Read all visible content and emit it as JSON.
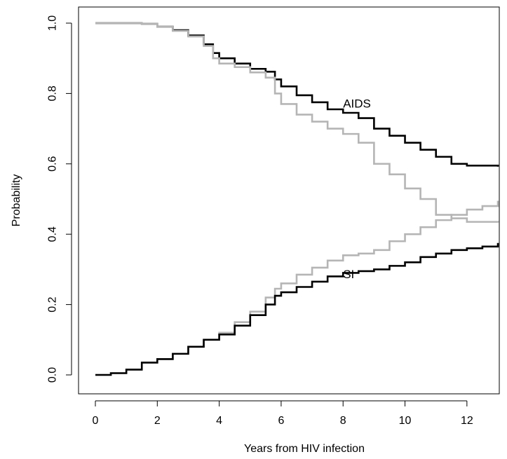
{
  "chart_data": {
    "type": "line",
    "title": "",
    "xlabel": "Years from HIV infection",
    "ylabel": "Probability",
    "xlim": [
      0,
      13
    ],
    "ylim": [
      0,
      1
    ],
    "xticks": [
      0,
      2,
      4,
      6,
      8,
      10,
      12
    ],
    "yticks": [
      0.0,
      0.2,
      0.4,
      0.6,
      0.8,
      1.0
    ],
    "ytick_labels": [
      "0.0",
      "0.2",
      "0.4",
      "0.6",
      "0.8",
      "1.0"
    ],
    "grid": false,
    "legend": "none",
    "annotations": [
      {
        "text": "AIDS",
        "x": 8.0,
        "y": 0.76
      },
      {
        "text": "SI",
        "x": 8.0,
        "y": 0.275
      }
    ],
    "series": [
      {
        "color": "#000000",
        "step": true,
        "x": [
          0,
          1.0,
          1.5,
          2.0,
          2.5,
          3.0,
          3.5,
          3.8,
          4.0,
          4.5,
          5.0,
          5.5,
          5.8,
          6.0,
          6.5,
          7.0,
          7.5,
          8.0,
          8.5,
          9.0,
          9.5,
          10.0,
          10.5,
          11.0,
          11.5,
          12.0,
          13.0
        ],
        "y": [
          1.0,
          1.0,
          0.998,
          0.99,
          0.98,
          0.965,
          0.94,
          0.915,
          0.9,
          0.885,
          0.87,
          0.862,
          0.84,
          0.82,
          0.795,
          0.775,
          0.755,
          0.745,
          0.73,
          0.7,
          0.68,
          0.66,
          0.64,
          0.62,
          0.6,
          0.595,
          0.592
        ]
      },
      {
        "color": "#b5b5b5",
        "step": true,
        "x": [
          0,
          1.0,
          1.5,
          2.0,
          2.5,
          3.0,
          3.5,
          3.8,
          4.0,
          4.5,
          5.0,
          5.5,
          5.8,
          6.0,
          6.5,
          7.0,
          7.5,
          8.0,
          8.5,
          9.0,
          9.5,
          10.0,
          10.5,
          11.0,
          11.5,
          12.0,
          13.0
        ],
        "y": [
          1.0,
          1.0,
          0.998,
          0.99,
          0.978,
          0.962,
          0.935,
          0.9,
          0.885,
          0.875,
          0.86,
          0.845,
          0.8,
          0.77,
          0.74,
          0.72,
          0.7,
          0.685,
          0.66,
          0.6,
          0.57,
          0.53,
          0.5,
          0.455,
          0.445,
          0.435,
          0.433
        ]
      },
      {
        "color": "#b5b5b5",
        "step": true,
        "x": [
          0,
          0.5,
          1.0,
          1.5,
          2.0,
          2.5,
          3.0,
          3.5,
          4.0,
          4.5,
          5.0,
          5.5,
          5.8,
          6.0,
          6.5,
          7.0,
          7.5,
          8.0,
          8.5,
          9.0,
          9.5,
          10.0,
          10.5,
          11.0,
          11.5,
          12.0,
          12.5,
          13.0
        ],
        "y": [
          0.0,
          0.005,
          0.015,
          0.035,
          0.045,
          0.06,
          0.08,
          0.1,
          0.12,
          0.15,
          0.18,
          0.22,
          0.245,
          0.26,
          0.285,
          0.305,
          0.325,
          0.34,
          0.345,
          0.355,
          0.38,
          0.4,
          0.42,
          0.44,
          0.455,
          0.47,
          0.48,
          0.495
        ]
      },
      {
        "color": "#000000",
        "step": true,
        "x": [
          0,
          0.5,
          1.0,
          1.5,
          2.0,
          2.5,
          3.0,
          3.5,
          4.0,
          4.5,
          5.0,
          5.5,
          5.8,
          6.0,
          6.5,
          7.0,
          7.5,
          8.0,
          8.5,
          9.0,
          9.5,
          10.0,
          10.5,
          11.0,
          11.5,
          12.0,
          12.5,
          13.0
        ],
        "y": [
          0.0,
          0.005,
          0.015,
          0.035,
          0.045,
          0.06,
          0.08,
          0.1,
          0.115,
          0.14,
          0.17,
          0.2,
          0.225,
          0.235,
          0.25,
          0.265,
          0.28,
          0.29,
          0.295,
          0.3,
          0.31,
          0.32,
          0.335,
          0.345,
          0.355,
          0.36,
          0.365,
          0.375
        ]
      }
    ]
  }
}
